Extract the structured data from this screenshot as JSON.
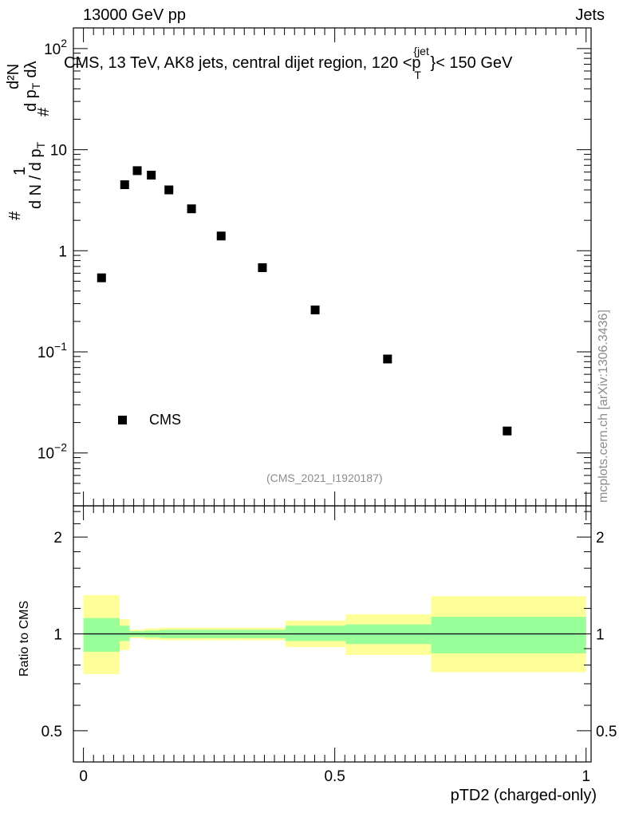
{
  "header": {
    "energy_label": "13000 GeV pp",
    "category_label": "Jets"
  },
  "side_label": "mcplots.cern.ch [arXiv:1306.3436]",
  "analysis_id": "(CMS_2021_I1920187)",
  "chart_data": [
    {
      "type": "scatter",
      "panel": "main",
      "title": "CMS, 13 TeV, AK8 jets, central dijet region, 120 < p_T^{jet} < 150 GeV",
      "title_parts": {
        "pre": "CMS, 13 TeV, AK8 jets, central dijet region, 120 <",
        "var": "p",
        "sub": "T",
        "sup": "{jet",
        "post": "}< 150 GeV"
      },
      "ylabel": "1/(dN/dp_T) d²N/(dp_T dλ)",
      "ylabel_parts": {
        "frac_num": "1",
        "frac_den": "d N / d p",
        "frac_den_sub": "T",
        "deriv_num": "d²N",
        "deriv_den": "d p",
        "deriv_den_sub": "T",
        "deriv_den_tail": "dλ",
        "hash": "#"
      },
      "yscale": "log",
      "ylim": [
        0.003,
        160
      ],
      "xlim": [
        -0.02,
        1.01
      ],
      "yticks": [
        {
          "value": 0.01,
          "base": "10",
          "exp": "−2"
        },
        {
          "value": 0.1,
          "base": "10",
          "exp": "−1"
        },
        {
          "value": 1,
          "base": "1",
          "exp": ""
        },
        {
          "value": 10,
          "base": "10",
          "exp": ""
        },
        {
          "value": 100,
          "base": "10",
          "exp": "2"
        }
      ],
      "series": [
        {
          "name": "CMS",
          "marker": "square",
          "color": "#000000",
          "x": [
            0.036,
            0.082,
            0.107,
            0.135,
            0.17,
            0.215,
            0.274,
            0.356,
            0.461,
            0.605,
            0.843
          ],
          "y": [
            0.54,
            4.5,
            6.2,
            5.6,
            4.0,
            2.6,
            1.4,
            0.68,
            0.26,
            0.085,
            0.0165
          ]
        }
      ],
      "legend": {
        "entry": "CMS",
        "placement": "lower-left"
      }
    },
    {
      "type": "area",
      "panel": "ratio",
      "ylabel": "Ratio to CMS",
      "xlabel": "pTD2 (charged-only)",
      "yscale": "log",
      "ylim": [
        0.4,
        2.5
      ],
      "xlim": [
        -0.02,
        1.01
      ],
      "yticks": [
        {
          "value": 0.5,
          "label": "0.5"
        },
        {
          "value": 1,
          "label": "1"
        },
        {
          "value": 2,
          "label": "2"
        }
      ],
      "xticks": [
        {
          "value": 0,
          "label": "0"
        },
        {
          "value": 0.5,
          "label": "0.5"
        },
        {
          "value": 1,
          "label": "1"
        }
      ],
      "reference_line": 1,
      "bands": {
        "inner_color": "#99ff99",
        "outer_color": "#ffff99",
        "bins": [
          {
            "lo": 0.0,
            "hi": 0.072,
            "inner": [
              0.88,
              1.12
            ],
            "outer": [
              0.75,
              1.32
            ]
          },
          {
            "lo": 0.072,
            "hi": 0.092,
            "inner": [
              0.95,
              1.06
            ],
            "outer": [
              0.89,
              1.11
            ]
          },
          {
            "lo": 0.092,
            "hi": 0.122,
            "inner": [
              0.98,
              1.02
            ],
            "outer": [
              0.97,
              1.03
            ]
          },
          {
            "lo": 0.122,
            "hi": 0.152,
            "inner": [
              0.975,
              1.025
            ],
            "outer": [
              0.96,
              1.04
            ]
          },
          {
            "lo": 0.152,
            "hi": 0.192,
            "inner": [
              0.97,
              1.03
            ],
            "outer": [
              0.955,
              1.045
            ]
          },
          {
            "lo": 0.192,
            "hi": 0.242,
            "inner": [
              0.97,
              1.03
            ],
            "outer": [
              0.955,
              1.045
            ]
          },
          {
            "lo": 0.242,
            "hi": 0.312,
            "inner": [
              0.97,
              1.03
            ],
            "outer": [
              0.955,
              1.045
            ]
          },
          {
            "lo": 0.312,
            "hi": 0.402,
            "inner": [
              0.97,
              1.03
            ],
            "outer": [
              0.955,
              1.045
            ]
          },
          {
            "lo": 0.402,
            "hi": 0.522,
            "inner": [
              0.95,
              1.06
            ],
            "outer": [
              0.91,
              1.1
            ]
          },
          {
            "lo": 0.522,
            "hi": 0.692,
            "inner": [
              0.93,
              1.07
            ],
            "outer": [
              0.86,
              1.15
            ]
          },
          {
            "lo": 0.692,
            "hi": 1.0,
            "inner": [
              0.87,
              1.13
            ],
            "outer": [
              0.76,
              1.31
            ]
          }
        ]
      }
    }
  ]
}
